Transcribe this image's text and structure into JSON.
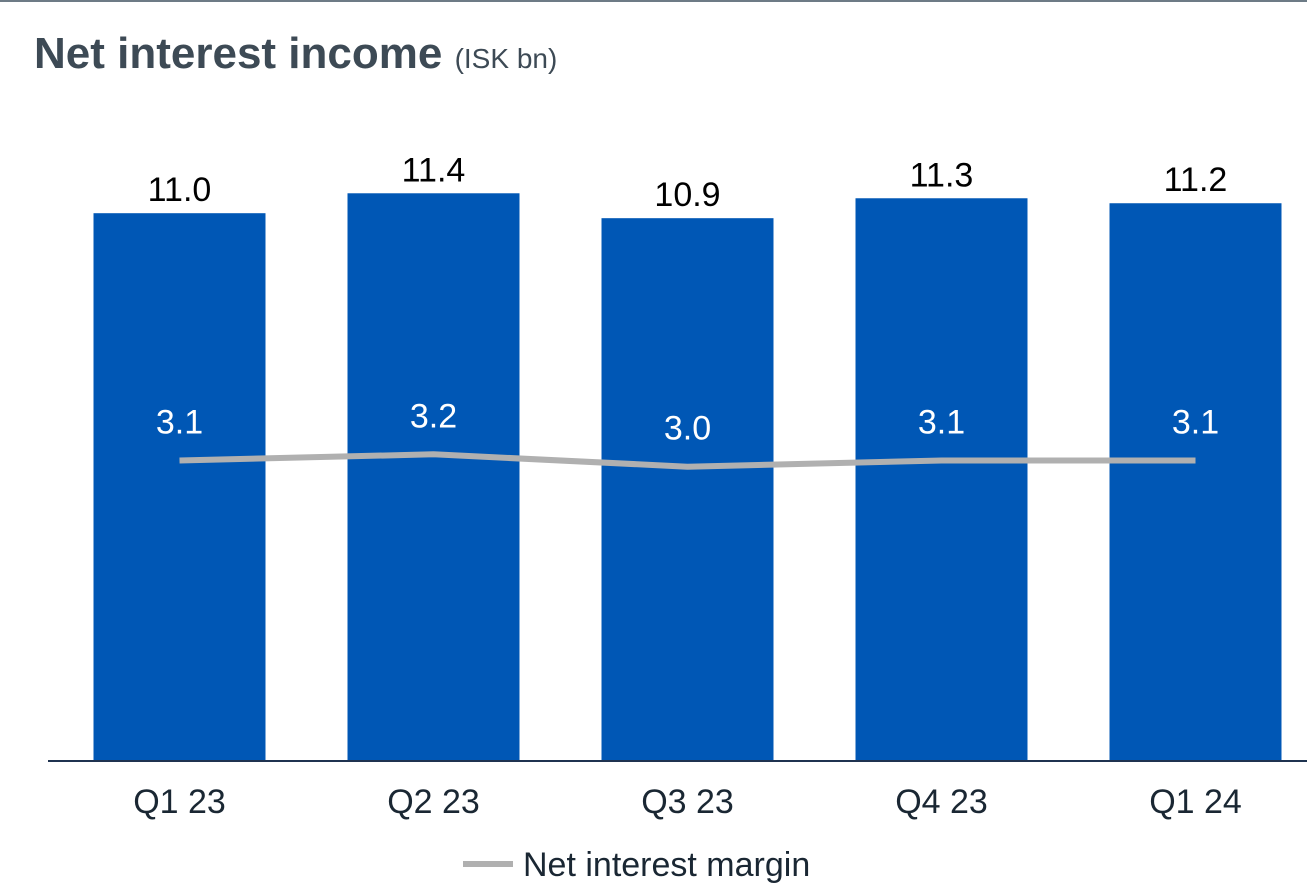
{
  "header": {
    "title": "Net interest income",
    "unit": "(ISK bn)"
  },
  "chart_data": {
    "type": "bar",
    "categories": [
      "Q1 23",
      "Q2 23",
      "Q3 23",
      "Q4 23",
      "Q1 24"
    ],
    "series": [
      {
        "name": "",
        "type": "bar",
        "values": [
          11.0,
          11.4,
          10.9,
          11.3,
          11.2
        ],
        "labels": [
          "11.0",
          "11.4",
          "10.9",
          "11.3",
          "11.2"
        ],
        "color": "#0057b5"
      },
      {
        "name": "Net interest margin",
        "type": "line",
        "values": [
          3.1,
          3.2,
          3.0,
          3.1,
          3.1
        ],
        "labels": [
          "3.1",
          "3.2",
          "3.0",
          "3.1",
          "3.1"
        ],
        "color": "#b0b0b0"
      }
    ],
    "legend": {
      "placement": "bottom",
      "entries": [
        "Net interest margin"
      ]
    },
    "grid": false
  }
}
